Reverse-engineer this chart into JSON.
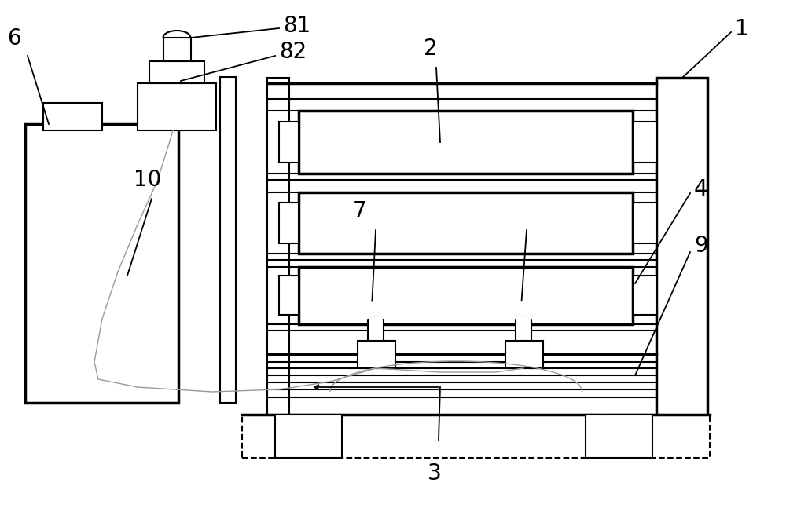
{
  "bg_color": "#ffffff",
  "line_color": "#000000",
  "lw": 1.5,
  "tlw": 2.5,
  "fig_width": 10.0,
  "fig_height": 6.61
}
